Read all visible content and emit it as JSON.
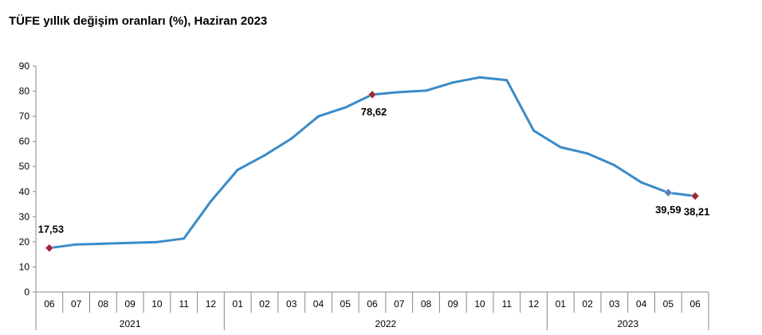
{
  "chart_data": {
    "type": "line",
    "title": "TÜFE yıllık değişim oranları (%), Haziran 2023",
    "xlabel": "",
    "ylabel": "",
    "ylim": [
      0,
      90
    ],
    "yticks": [
      "0",
      "10",
      "20",
      "30",
      "40",
      "50",
      "60",
      "70",
      "80",
      "90"
    ],
    "grid": false,
    "legend": "none",
    "categories": [
      "06",
      "07",
      "08",
      "09",
      "10",
      "11",
      "12",
      "01",
      "02",
      "03",
      "04",
      "05",
      "06",
      "07",
      "08",
      "09",
      "10",
      "11",
      "12",
      "01",
      "02",
      "03",
      "04",
      "05",
      "06"
    ],
    "years": [
      {
        "label": "2021",
        "span": 7
      },
      {
        "label": "2022",
        "span": 12
      },
      {
        "label": "2023",
        "span": 6
      }
    ],
    "series": [
      {
        "color": "#3A8BC8",
        "values": [
          17.53,
          18.95,
          19.25,
          19.58,
          19.89,
          21.31,
          36.08,
          48.69,
          54.44,
          61.14,
          69.97,
          73.5,
          78.62,
          79.6,
          80.21,
          83.45,
          85.51,
          84.39,
          64.27,
          57.68,
          55.18,
          50.51,
          43.68,
          39.59,
          38.21
        ]
      }
    ],
    "data_labels": [
      {
        "index": 0,
        "text": "17,53",
        "marker_color": "#A0283C"
      },
      {
        "index": 12,
        "text": "78,62",
        "marker_color": "#A0283C"
      },
      {
        "index": 23,
        "text": "39,59",
        "marker_color": "#5B7FB8"
      },
      {
        "index": 24,
        "text": "38,21",
        "marker_color": "#A0283C"
      }
    ]
  }
}
